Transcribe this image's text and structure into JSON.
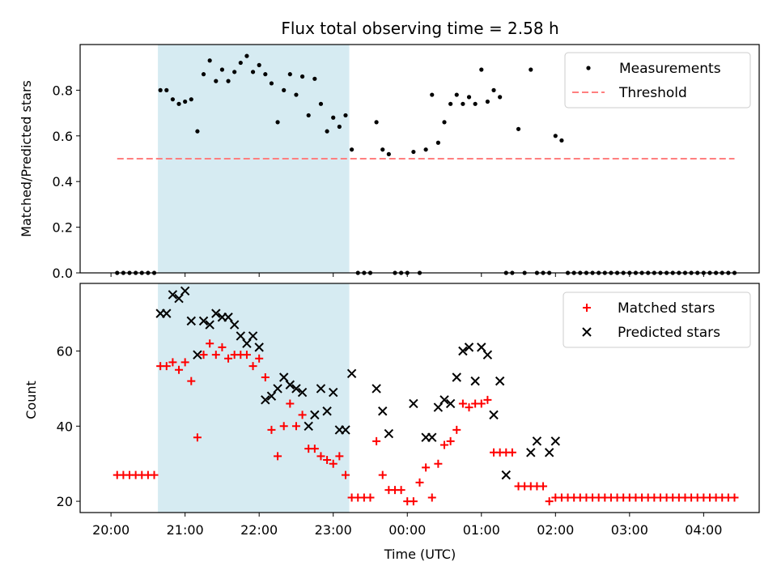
{
  "chart_data": [
    {
      "type": "scatter",
      "title": "Flux total observing time = 2.58 h",
      "ylabel": "Matched/Predicted stars",
      "xlabel": "",
      "ylim": [
        0,
        1.0
      ],
      "yticks": [
        0.0,
        0.2,
        0.4,
        0.6,
        0.8
      ],
      "ytick_labels": [
        "0.0",
        "0.2",
        "0.4",
        "0.6",
        "0.8"
      ],
      "shaded_interval": [
        "20:38",
        "23:13"
      ],
      "shade_color": "#add8e6",
      "legend": {
        "placement": "top-right",
        "entries": [
          "Measurements",
          "Threshold"
        ]
      },
      "threshold": {
        "name": "Threshold",
        "x": [
          "20:05",
          "04:25"
        ],
        "y": 0.5,
        "color": "#ff7f7f"
      },
      "series": [
        {
          "name": "Measurements",
          "color": "#000000",
          "x": [
            "20:05",
            "20:10",
            "20:15",
            "20:20",
            "20:25",
            "20:30",
            "20:35",
            "20:40",
            "20:45",
            "20:50",
            "20:55",
            "21:00",
            "21:05",
            "21:10",
            "21:15",
            "21:20",
            "21:25",
            "21:30",
            "21:35",
            "21:40",
            "21:45",
            "21:50",
            "21:55",
            "22:00",
            "22:05",
            "22:10",
            "22:15",
            "22:20",
            "22:25",
            "22:30",
            "22:35",
            "22:40",
            "22:45",
            "22:50",
            "22:55",
            "23:00",
            "23:05",
            "23:10",
            "23:15",
            "23:20",
            "23:25",
            "23:30",
            "23:35",
            "23:40",
            "23:45",
            "23:50",
            "23:55",
            "00:00",
            "00:05",
            "00:10",
            "00:15",
            "00:20",
            "00:25",
            "00:30",
            "00:35",
            "00:40",
            "00:45",
            "00:50",
            "00:55",
            "01:00",
            "01:05",
            "01:10",
            "01:15",
            "01:20",
            "01:25",
            "01:30",
            "01:35",
            "01:40",
            "01:45",
            "01:50",
            "01:55",
            "02:00",
            "02:05",
            "02:10",
            "02:15",
            "02:20",
            "02:25",
            "02:30",
            "02:35",
            "02:40",
            "02:45",
            "02:50",
            "02:55",
            "03:00",
            "03:05",
            "03:10",
            "03:15",
            "03:20",
            "03:25",
            "03:30",
            "03:35",
            "03:40",
            "03:45",
            "03:50",
            "03:55",
            "04:00",
            "04:05",
            "04:10",
            "04:15",
            "04:20",
            "04:25"
          ],
          "y": [
            0,
            0,
            0,
            0,
            0,
            0,
            0,
            0.8,
            0.8,
            0.76,
            0.74,
            0.75,
            0.76,
            0.62,
            0.87,
            0.93,
            0.84,
            0.89,
            0.84,
            0.88,
            0.92,
            0.95,
            0.88,
            0.91,
            0.87,
            0.83,
            0.66,
            0.8,
            0.87,
            0.78,
            0.86,
            0.69,
            0.85,
            0.74,
            0.62,
            0.68,
            0.64,
            0.69,
            0.54,
            0,
            0,
            0,
            0.66,
            0.54,
            0.52,
            0,
            0,
            0,
            0.53,
            0,
            0.54,
            0.78,
            0.57,
            0.66,
            0.74,
            0.78,
            0.74,
            0.77,
            0.74,
            0.89,
            0.75,
            0.8,
            0.77,
            0,
            0,
            0.63,
            0,
            0.89,
            0,
            0,
            0,
            0.6,
            0.58,
            0,
            0,
            0,
            0,
            0,
            0,
            0,
            0,
            0,
            0,
            0,
            0,
            0,
            0,
            0,
            0,
            0,
            0,
            0,
            0,
            0,
            0,
            0,
            0,
            0,
            0,
            0,
            0
          ]
        }
      ]
    },
    {
      "type": "scatter",
      "title": "",
      "ylabel": "Count",
      "xlabel": "Time (UTC)",
      "ylim": [
        17,
        78
      ],
      "yticks": [
        20,
        40,
        60
      ],
      "ytick_labels": [
        "20",
        "40",
        "60"
      ],
      "xticks": [
        "20:00",
        "21:00",
        "22:00",
        "23:00",
        "00:00",
        "01:00",
        "02:00",
        "03:00",
        "04:00"
      ],
      "xlim": [
        "19:35",
        "04:45"
      ],
      "shaded_interval": [
        "20:38",
        "23:13"
      ],
      "shade_color": "#add8e6",
      "legend": {
        "placement": "top-right",
        "entries": [
          "Matched stars",
          "Predicted stars"
        ]
      },
      "series": [
        {
          "name": "Matched stars",
          "marker": "plus",
          "color": "#ff0000",
          "x": [
            "20:05",
            "20:10",
            "20:15",
            "20:20",
            "20:25",
            "20:30",
            "20:35",
            "20:40",
            "20:45",
            "20:50",
            "20:55",
            "21:00",
            "21:05",
            "21:10",
            "21:15",
            "21:20",
            "21:25",
            "21:30",
            "21:35",
            "21:40",
            "21:45",
            "21:50",
            "21:55",
            "22:00",
            "22:05",
            "22:10",
            "22:15",
            "22:20",
            "22:25",
            "22:30",
            "22:35",
            "22:40",
            "22:45",
            "22:50",
            "22:55",
            "23:00",
            "23:05",
            "23:10",
            "23:15",
            "23:20",
            "23:25",
            "23:30",
            "23:35",
            "23:40",
            "23:45",
            "23:50",
            "23:55",
            "00:00",
            "00:05",
            "00:10",
            "00:15",
            "00:20",
            "00:25",
            "00:30",
            "00:35",
            "00:40",
            "00:45",
            "00:50",
            "00:55",
            "01:00",
            "01:05",
            "01:10",
            "01:15",
            "01:20",
            "01:25",
            "01:30",
            "01:35",
            "01:40",
            "01:45",
            "01:50",
            "01:55",
            "02:00",
            "02:05",
            "02:10",
            "02:15",
            "02:20",
            "02:25",
            "02:30",
            "02:35",
            "02:40",
            "02:45",
            "02:50",
            "02:55",
            "03:00",
            "03:05",
            "03:10",
            "03:15",
            "03:20",
            "03:25",
            "03:30",
            "03:35",
            "03:40",
            "03:45",
            "03:50",
            "03:55",
            "04:00",
            "04:05",
            "04:10",
            "04:15",
            "04:20",
            "04:25"
          ],
          "y": [
            27,
            27,
            27,
            27,
            27,
            27,
            27,
            56,
            56,
            57,
            55,
            57,
            52,
            37,
            59,
            62,
            59,
            61,
            58,
            59,
            59,
            59,
            56,
            58,
            53,
            39,
            32,
            40,
            46,
            40,
            43,
            34,
            34,
            32,
            31,
            30,
            32,
            27,
            21,
            21,
            21,
            21,
            36,
            27,
            23,
            23,
            23,
            20,
            20,
            25,
            29,
            21,
            30,
            35,
            36,
            39,
            46,
            45,
            46,
            46,
            47,
            33,
            33,
            33,
            33,
            24,
            24,
            24,
            24,
            24,
            20,
            21,
            21,
            21,
            21,
            21,
            21,
            21,
            21,
            21,
            21,
            21,
            21,
            21,
            21,
            21,
            21,
            21,
            21,
            21,
            21,
            21,
            21,
            21,
            21,
            21,
            21,
            21,
            21,
            21,
            21
          ]
        },
        {
          "name": "Predicted stars",
          "marker": "x",
          "color": "#000000",
          "x": [
            "20:40",
            "20:45",
            "20:50",
            "20:55",
            "21:00",
            "21:05",
            "21:10",
            "21:15",
            "21:20",
            "21:25",
            "21:30",
            "21:35",
            "21:40",
            "21:45",
            "21:50",
            "21:55",
            "22:00",
            "22:05",
            "22:10",
            "22:15",
            "22:20",
            "22:25",
            "22:30",
            "22:35",
            "22:40",
            "22:45",
            "22:50",
            "22:55",
            "23:00",
            "23:05",
            "23:10",
            "23:15",
            "23:35",
            "23:40",
            "23:45",
            "00:05",
            "00:15",
            "00:20",
            "00:25",
            "00:30",
            "00:35",
            "00:40",
            "00:45",
            "00:50",
            "00:55",
            "01:00",
            "01:05",
            "01:10",
            "01:15",
            "01:20",
            "01:40",
            "01:45",
            "01:55",
            "02:00"
          ],
          "y": [
            70,
            70,
            75,
            74,
            76,
            68,
            59,
            68,
            67,
            70,
            69,
            69,
            67,
            64,
            62,
            64,
            61,
            47,
            48,
            50,
            53,
            51,
            50,
            49,
            40,
            43,
            50,
            44,
            49,
            39,
            39,
            54,
            50,
            44,
            38,
            46,
            37,
            37,
            45,
            47,
            46,
            53,
            60,
            61,
            52,
            61,
            59,
            43,
            52,
            27,
            33,
            36,
            33,
            36
          ]
        }
      ]
    }
  ]
}
